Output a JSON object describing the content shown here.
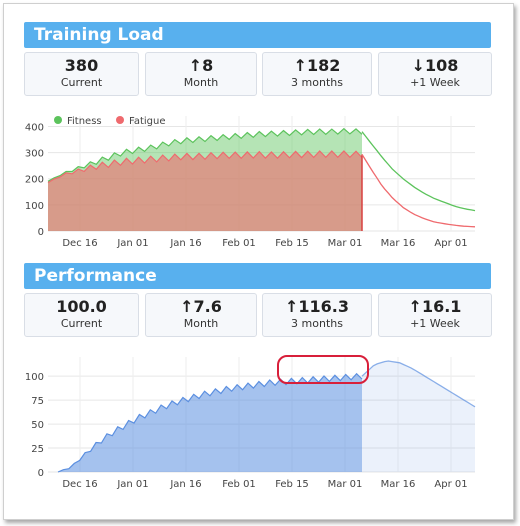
{
  "training": {
    "title": "Training Load",
    "stats": [
      {
        "arrow": "",
        "value": "380",
        "label": "Current"
      },
      {
        "arrow": "↑",
        "value": "8",
        "label": "Month"
      },
      {
        "arrow": "↑",
        "value": "182",
        "label": "3 months"
      },
      {
        "arrow": "↓",
        "value": "108",
        "label": "+1 Week"
      }
    ]
  },
  "performance": {
    "title": "Performance",
    "stats": [
      {
        "arrow": "",
        "value": "100.0",
        "label": "Current"
      },
      {
        "arrow": "↑",
        "value": "7.6",
        "label": "Month"
      },
      {
        "arrow": "↑",
        "value": "116.3",
        "label": "3 months"
      },
      {
        "arrow": "↑",
        "value": "16.1",
        "label": "+1 Week"
      }
    ]
  },
  "colors": {
    "header": "#58b0ee",
    "fitness": "#5cc35c",
    "fatigue": "#ef6a6e",
    "performance": "#5b8fe0",
    "highlight": "#d81f3a"
  },
  "chart_data": [
    {
      "type": "area",
      "x_ticks": [
        "Dec 16",
        "Jan 01",
        "Jan 16",
        "Feb 01",
        "Feb 15",
        "Mar 01",
        "Mar 16",
        "Apr 01"
      ],
      "y_ticks": [
        "0",
        "100",
        "200",
        "300",
        "400"
      ],
      "ylim": [
        0,
        440
      ],
      "legend": "top-left",
      "series": [
        {
          "name": "Fitness",
          "values": [
            190,
            220,
            240,
            260,
            280,
            300,
            310,
            320,
            335,
            345,
            350,
            355,
            360,
            365,
            370,
            372,
            375,
            378,
            380,
            380,
            382,
            380
          ],
          "projection": [
            380,
            330,
            280,
            235,
            200,
            170,
            145,
            125,
            110,
            95,
            85,
            78
          ]
        },
        {
          "name": "Fatigue",
          "values": [
            185,
            215,
            230,
            245,
            255,
            265,
            270,
            275,
            280,
            285,
            285,
            288,
            290,
            290,
            292,
            290,
            292,
            293,
            294,
            294,
            294,
            293
          ],
          "projection": [
            293,
            230,
            170,
            125,
            90,
            65,
            48,
            35,
            28,
            22,
            18,
            16
          ]
        }
      ]
    },
    {
      "type": "area",
      "x_ticks": [
        "Dec 16",
        "Jan 01",
        "Jan 16",
        "Feb 01",
        "Feb 15",
        "Mar 01",
        "Mar 16",
        "Apr 01"
      ],
      "y_ticks": [
        "0",
        "25",
        "50",
        "75",
        "100"
      ],
      "ylim": [
        0,
        120
      ],
      "series": [
        {
          "name": "",
          "values": [
            0,
            5,
            18,
            30,
            40,
            48,
            56,
            62,
            68,
            73,
            77,
            81,
            84,
            87,
            89,
            91,
            93,
            94,
            95,
            96,
            97,
            98,
            99,
            100
          ],
          "projection": [
            100,
            112,
            116,
            114,
            108,
            100,
            92,
            84,
            76,
            68
          ]
        }
      ]
    }
  ]
}
